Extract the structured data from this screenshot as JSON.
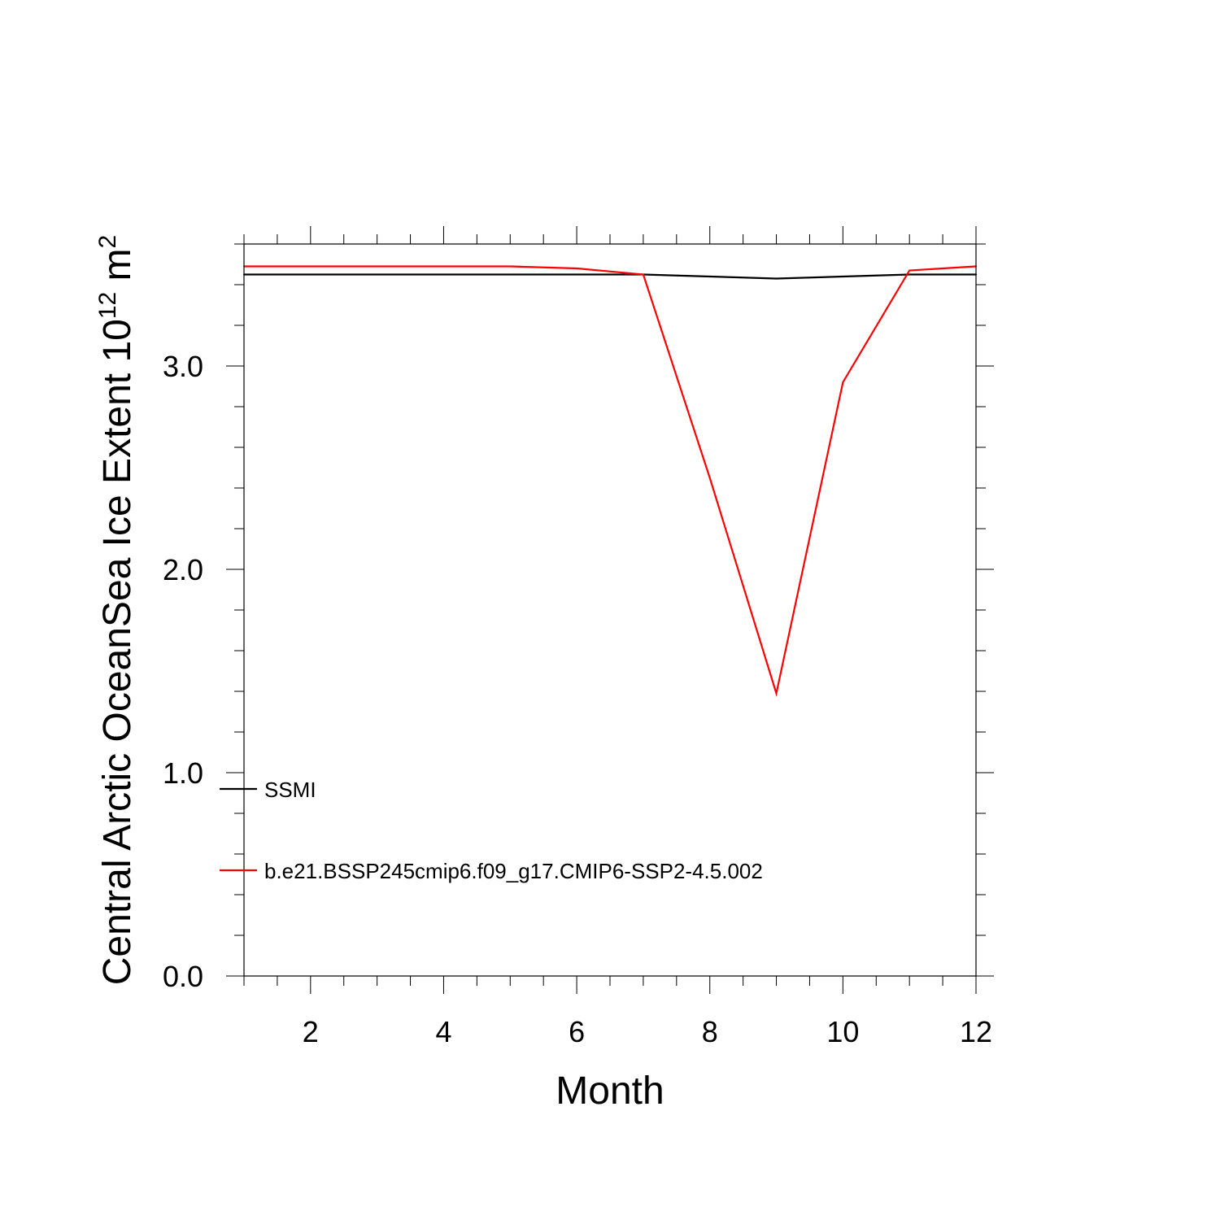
{
  "chart_data": {
    "type": "line",
    "xlabel": "Month",
    "ylabel": {
      "main": "Central Arctic OceanSea Ice Extent 10",
      "sup1": "12",
      "unit": " m",
      "sup2": "2"
    },
    "xlim": [
      1,
      12
    ],
    "ylim": [
      0,
      3.6
    ],
    "x": [
      1,
      2,
      3,
      4,
      5,
      6,
      7,
      8,
      9,
      10,
      11,
      12
    ],
    "x_ticks": [
      2,
      4,
      6,
      8,
      10,
      12
    ],
    "x_tick_labels": [
      "2",
      "4",
      "6",
      "8",
      "10",
      "12"
    ],
    "y_ticks": [
      0,
      1,
      2,
      3
    ],
    "y_tick_labels": [
      "0.0",
      "1.0",
      "2.0",
      "3.0"
    ],
    "grid": false,
    "legend_position": "lower-left inside",
    "series": [
      {
        "name": "SSMI",
        "color": "#000000",
        "values": [
          3.45,
          3.45,
          3.45,
          3.45,
          3.45,
          3.45,
          3.45,
          3.44,
          3.43,
          3.44,
          3.45,
          3.45
        ]
      },
      {
        "name": "b.e21.BSSP245cmip6.f09_g17.CMIP6-SSP2-4.5.002",
        "color": "#ff0000",
        "values": [
          3.49,
          3.49,
          3.49,
          3.49,
          3.49,
          3.48,
          3.45,
          2.45,
          1.39,
          2.92,
          3.47,
          3.49
        ]
      }
    ]
  }
}
